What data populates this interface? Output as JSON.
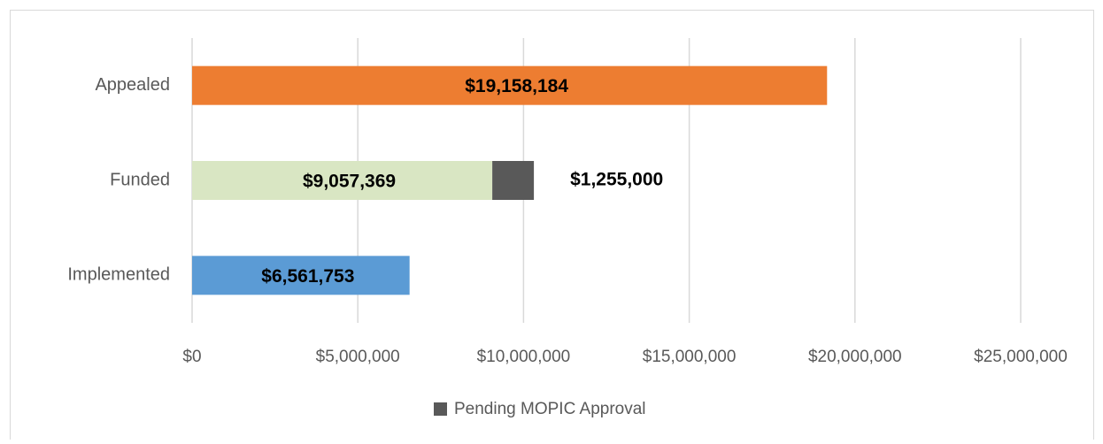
{
  "chart_data": {
    "type": "stacked-barh",
    "categories": [
      "Appealed",
      "Funded",
      "Implemented"
    ],
    "series": [
      {
        "colors": [
          "#ed7d31",
          "#d9e6c3",
          "#5b9bd5"
        ],
        "values": [
          19158184,
          9057369,
          6561753
        ],
        "value_labels": [
          "$19,158,184",
          "$9,057,369",
          "$6,561,753"
        ]
      },
      {
        "name": "Pending MOPIC Approval",
        "color": "#595959",
        "values": [
          null,
          1255000,
          null
        ],
        "value_labels": [
          null,
          "$1,255,000",
          null
        ]
      }
    ],
    "xlim": [
      0,
      25000000
    ],
    "xticks": [
      {
        "value": 0,
        "label": "$0"
      },
      {
        "value": 5000000,
        "label": "$5,000,000"
      },
      {
        "value": 10000000,
        "label": "$10,000,000"
      },
      {
        "value": 15000000,
        "label": "$15,000,000"
      },
      {
        "value": 20000000,
        "label": "$20,000,000"
      },
      {
        "value": 25000000,
        "label": "$25,000,000"
      }
    ],
    "grid": true,
    "legend": "bottom"
  }
}
